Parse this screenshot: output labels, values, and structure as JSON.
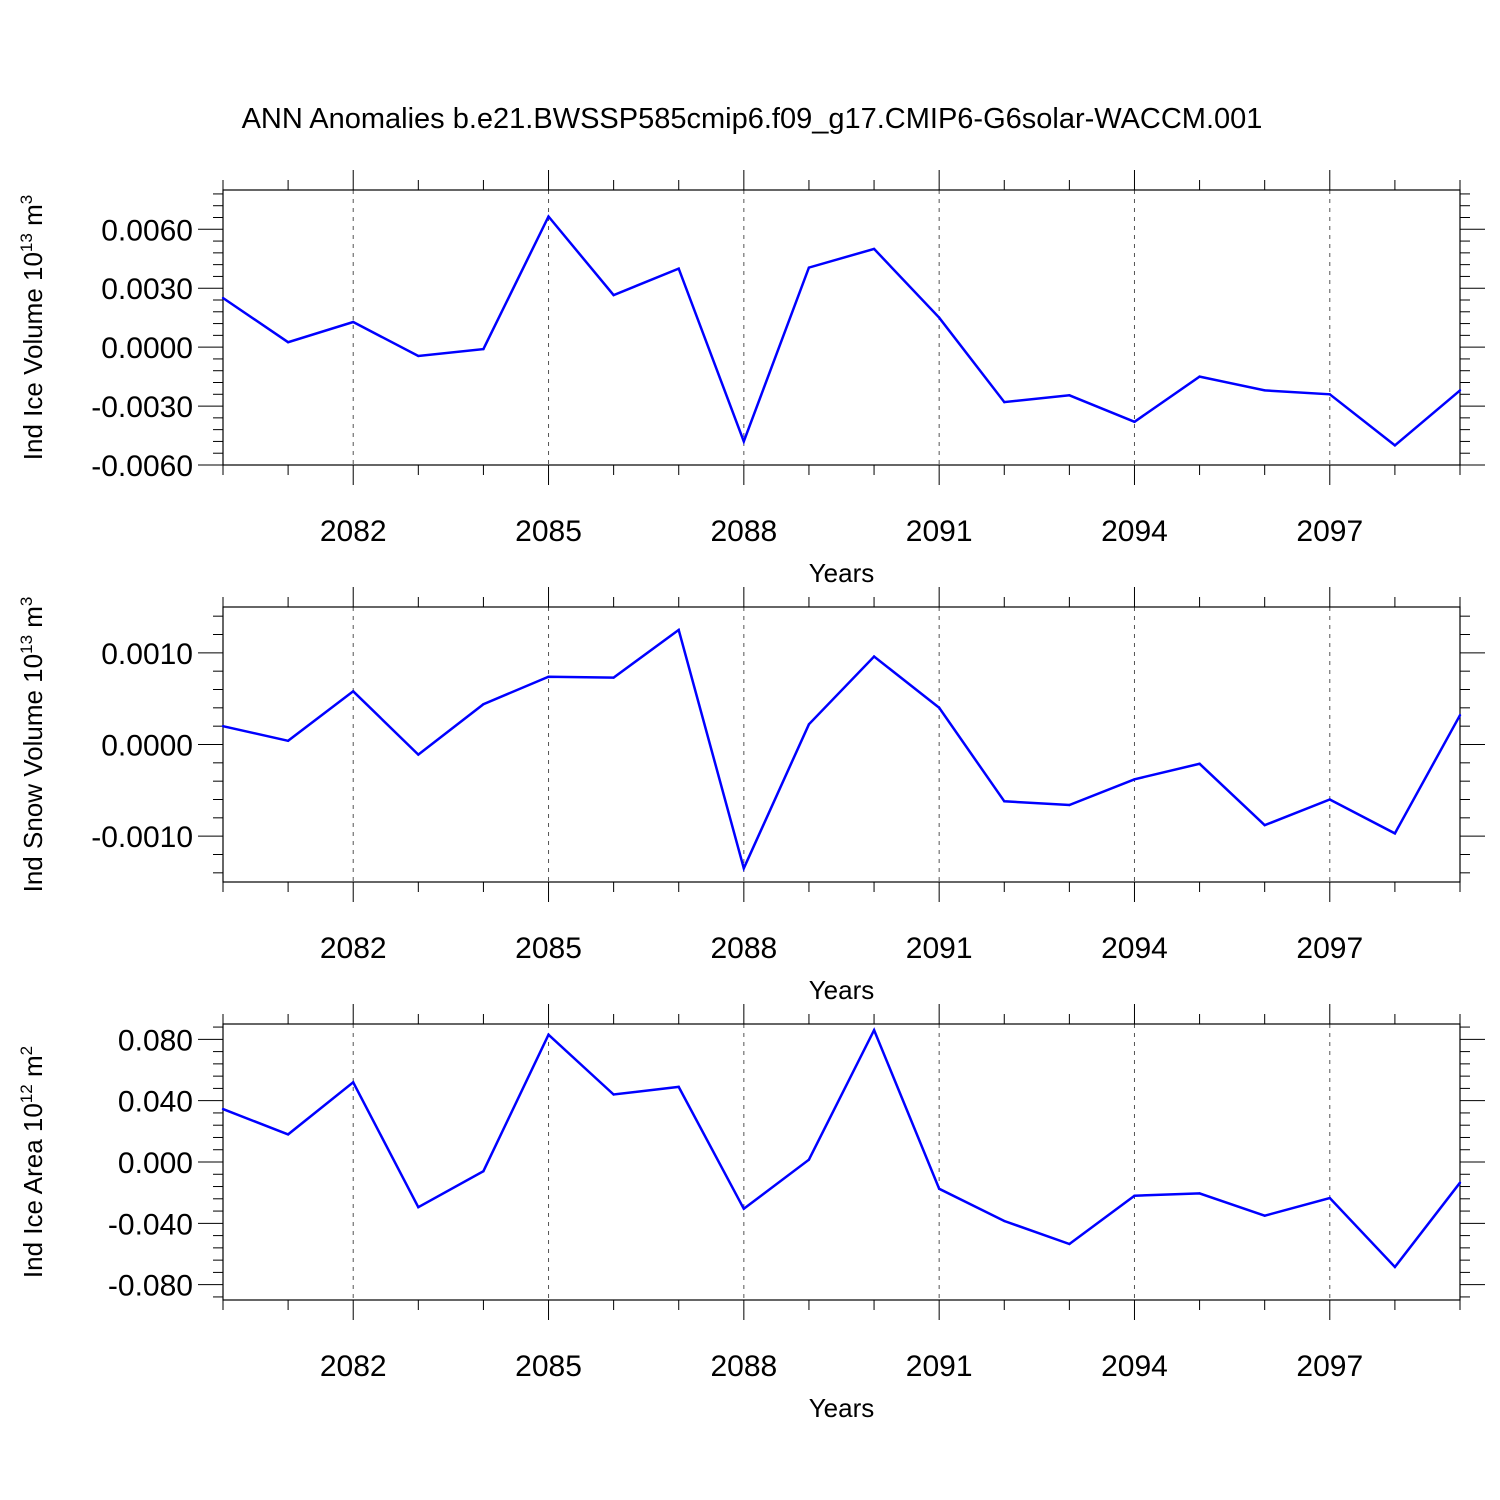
{
  "title": "ANN Anomalies b.e21.BWSSP585cmip6.f09_g17.CMIP6-G6solar-WACCM.001",
  "line_color": "#0000ff",
  "chart_data": [
    {
      "type": "line",
      "ylabel": "Ind Ice Volume 10",
      "ylabel_exp": "13",
      "ylabel_unit": "m",
      "ylabel_unit_exp": "3",
      "xlabel": "Years",
      "xlim": [
        2080,
        2099
      ],
      "ylim": [
        -0.006,
        0.008
      ],
      "xticks": [
        2082,
        2085,
        2088,
        2091,
        2094,
        2097
      ],
      "yticks": [
        -0.006,
        -0.003,
        0.0,
        0.003,
        0.006
      ],
      "yticklabels": [
        "-0.0060",
        "-0.0030",
        "0.0000",
        "0.0030",
        "0.0060"
      ],
      "x": [
        2080,
        2081,
        2082,
        2083,
        2084,
        2085,
        2086,
        2087,
        2088,
        2089,
        2090,
        2091,
        2092,
        2093,
        2094,
        2095,
        2096,
        2097,
        2098,
        2099
      ],
      "series": [
        {
          "values": [
            0.0025,
            0.00025,
            0.00128,
            -0.00045,
            -0.0001,
            0.00665,
            0.00265,
            0.004,
            -0.0048,
            0.00405,
            0.005,
            0.0015,
            -0.0028,
            -0.00245,
            -0.0038,
            -0.0015,
            -0.0022,
            -0.0024,
            -0.005,
            -0.0022
          ]
        }
      ]
    },
    {
      "type": "line",
      "ylabel": "Ind Snow Volume 10",
      "ylabel_exp": "13",
      "ylabel_unit": "m",
      "ylabel_unit_exp": "3",
      "xlabel": "Years",
      "xlim": [
        2080,
        2099
      ],
      "ylim": [
        -0.0015,
        0.0015
      ],
      "xticks": [
        2082,
        2085,
        2088,
        2091,
        2094,
        2097
      ],
      "yticks": [
        -0.001,
        0.0,
        0.001
      ],
      "yticklabels": [
        "-0.0010",
        "0.0000",
        "0.0010"
      ],
      "x": [
        2080,
        2081,
        2082,
        2083,
        2084,
        2085,
        2086,
        2087,
        2088,
        2089,
        2090,
        2091,
        2092,
        2093,
        2094,
        2095,
        2096,
        2097,
        2098,
        2099
      ],
      "series": [
        {
          "values": [
            0.0002,
            4e-05,
            0.00058,
            -0.00011,
            0.00044,
            0.00074,
            0.00073,
            0.00125,
            -0.00135,
            0.00022,
            0.00096,
            0.0004,
            -0.00062,
            -0.00066,
            -0.00038,
            -0.00021,
            -0.00088,
            -0.0006,
            -0.00097,
            0.00032
          ]
        }
      ]
    },
    {
      "type": "line",
      "ylabel": "Ind Ice Area 10",
      "ylabel_exp": "12",
      "ylabel_unit": "m",
      "ylabel_unit_exp": "2",
      "xlabel": "Years",
      "xlim": [
        2080,
        2099
      ],
      "ylim": [
        -0.09,
        0.09
      ],
      "xticks": [
        2082,
        2085,
        2088,
        2091,
        2094,
        2097
      ],
      "yticks": [
        -0.08,
        -0.04,
        0.0,
        0.04,
        0.08
      ],
      "yticklabels": [
        "-0.080",
        "-0.040",
        "0.000",
        "0.040",
        "0.080"
      ],
      "x": [
        2080,
        2081,
        2082,
        2083,
        2084,
        2085,
        2086,
        2087,
        2088,
        2089,
        2090,
        2091,
        2092,
        2093,
        2094,
        2095,
        2096,
        2097,
        2098,
        2099
      ],
      "series": [
        {
          "values": [
            0.0345,
            0.018,
            0.052,
            -0.0295,
            -0.006,
            0.083,
            0.044,
            0.049,
            -0.0305,
            0.0015,
            0.086,
            -0.0175,
            -0.0385,
            -0.0535,
            -0.022,
            -0.0205,
            -0.035,
            -0.0235,
            -0.0685,
            -0.0135
          ]
        }
      ]
    }
  ]
}
